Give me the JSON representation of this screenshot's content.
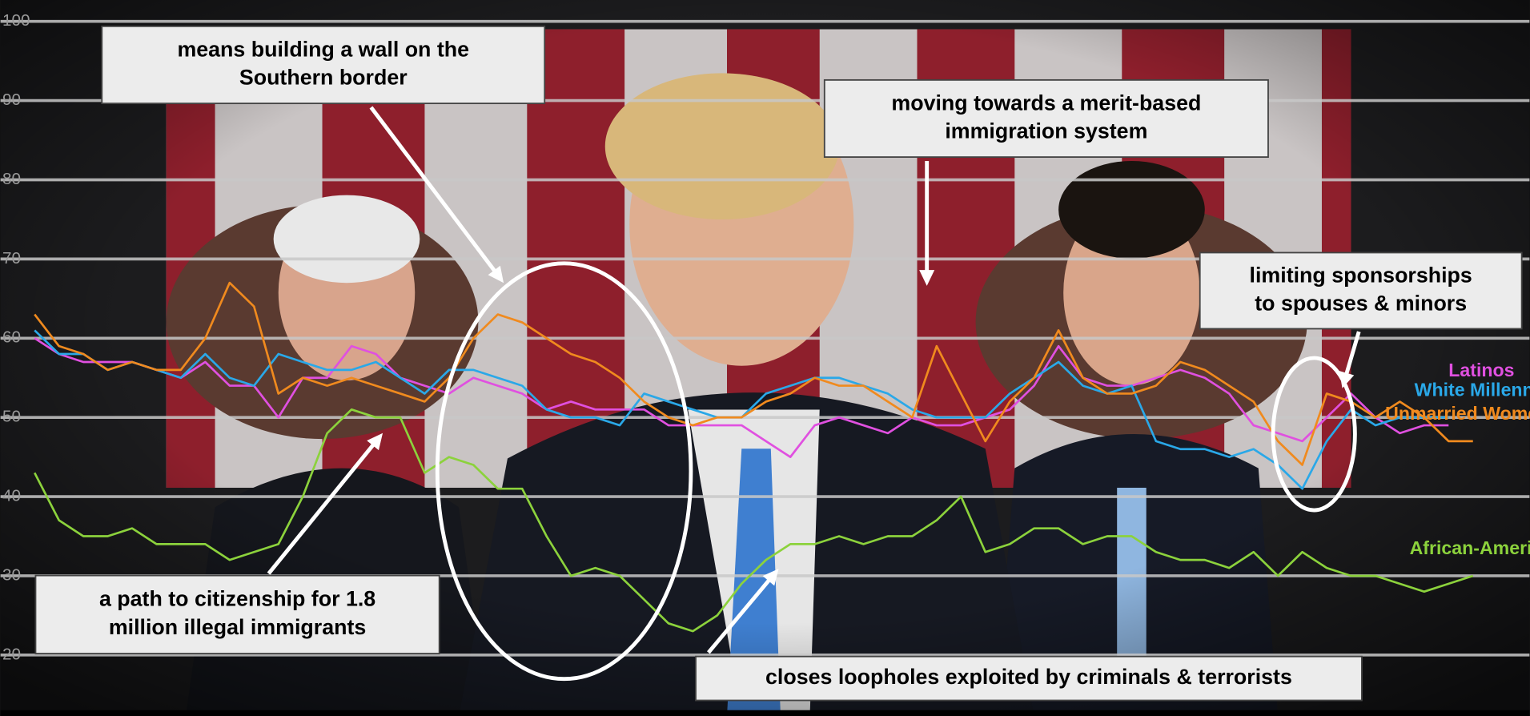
{
  "chart_data": {
    "type": "line",
    "ylim": [
      12.3,
      102.7
    ],
    "yticks": [
      20,
      30,
      40,
      50,
      60,
      70,
      80,
      90,
      100
    ],
    "grid": true,
    "series": [
      {
        "name": "Latinos",
        "color": "#e050e0",
        "values": [
          60,
          58,
          57,
          57,
          57,
          56,
          55,
          57,
          54,
          54,
          50,
          55,
          55,
          59,
          58,
          55,
          54,
          53,
          55,
          54,
          53,
          51,
          52,
          51,
          51,
          51,
          49,
          49,
          49,
          49,
          47,
          45,
          49,
          50,
          49,
          48,
          50,
          49,
          49,
          50,
          51,
          54,
          59,
          55,
          54,
          54,
          55,
          56,
          55,
          53,
          49,
          48,
          47,
          50,
          53,
          50,
          48,
          49,
          49,
          null
        ]
      },
      {
        "name": "White Millennials",
        "color": "#2aa8e8",
        "values": [
          61,
          58,
          58,
          56,
          57,
          56,
          55,
          58,
          55,
          54,
          58,
          57,
          56,
          56,
          57,
          55,
          53,
          56,
          56,
          55,
          54,
          51,
          50,
          50,
          49,
          53,
          52,
          51,
          50,
          50,
          53,
          54,
          55,
          55,
          54,
          53,
          51,
          50,
          50,
          50,
          53,
          55,
          57,
          54,
          53,
          54,
          47,
          46,
          46,
          45,
          46,
          44,
          41,
          47,
          51,
          49,
          50,
          50,
          50,
          null
        ]
      },
      {
        "name": "Unmarried Women",
        "color": "#f08a1e",
        "values": [
          63,
          59,
          58,
          56,
          57,
          56,
          56,
          60,
          67,
          64,
          53,
          55,
          54,
          55,
          54,
          53,
          52,
          55,
          60,
          63,
          62,
          60,
          58,
          57,
          55,
          52,
          50,
          49,
          50,
          50,
          52,
          53,
          55,
          54,
          54,
          52,
          50,
          59,
          53,
          47,
          52,
          55,
          61,
          55,
          53,
          53,
          54,
          57,
          56,
          54,
          52,
          47,
          44,
          53,
          52,
          50,
          52,
          50,
          47,
          47
        ]
      },
      {
        "name": "African-American",
        "color": "#8cd23c",
        "values": [
          43,
          37,
          35,
          35,
          36,
          34,
          34,
          34,
          32,
          33,
          34,
          40,
          48,
          51,
          50,
          50,
          43,
          45,
          44,
          41,
          41,
          35,
          30,
          31,
          30,
          27,
          24,
          23,
          25,
          29,
          32,
          34,
          34,
          35,
          34,
          35,
          35,
          37,
          40,
          33,
          34,
          36,
          36,
          34,
          35,
          35,
          33,
          32,
          32,
          31,
          33,
          30,
          33,
          31,
          30,
          30,
          29,
          28,
          29,
          30
        ]
      }
    ],
    "annotations": [
      {
        "lines": [
          "means building a wall on the",
          "Southern border"
        ]
      },
      {
        "lines": [
          "moving towards a merit-based",
          "immigration system"
        ]
      },
      {
        "lines": [
          "limiting  sponsorships",
          "to spouses & minors"
        ]
      },
      {
        "lines": [
          "a path to citizenship for 1.8",
          "million  illegal  immigrants"
        ]
      },
      {
        "lines": [
          "closes loopholes exploited by criminals  &  terrorists"
        ]
      }
    ]
  }
}
